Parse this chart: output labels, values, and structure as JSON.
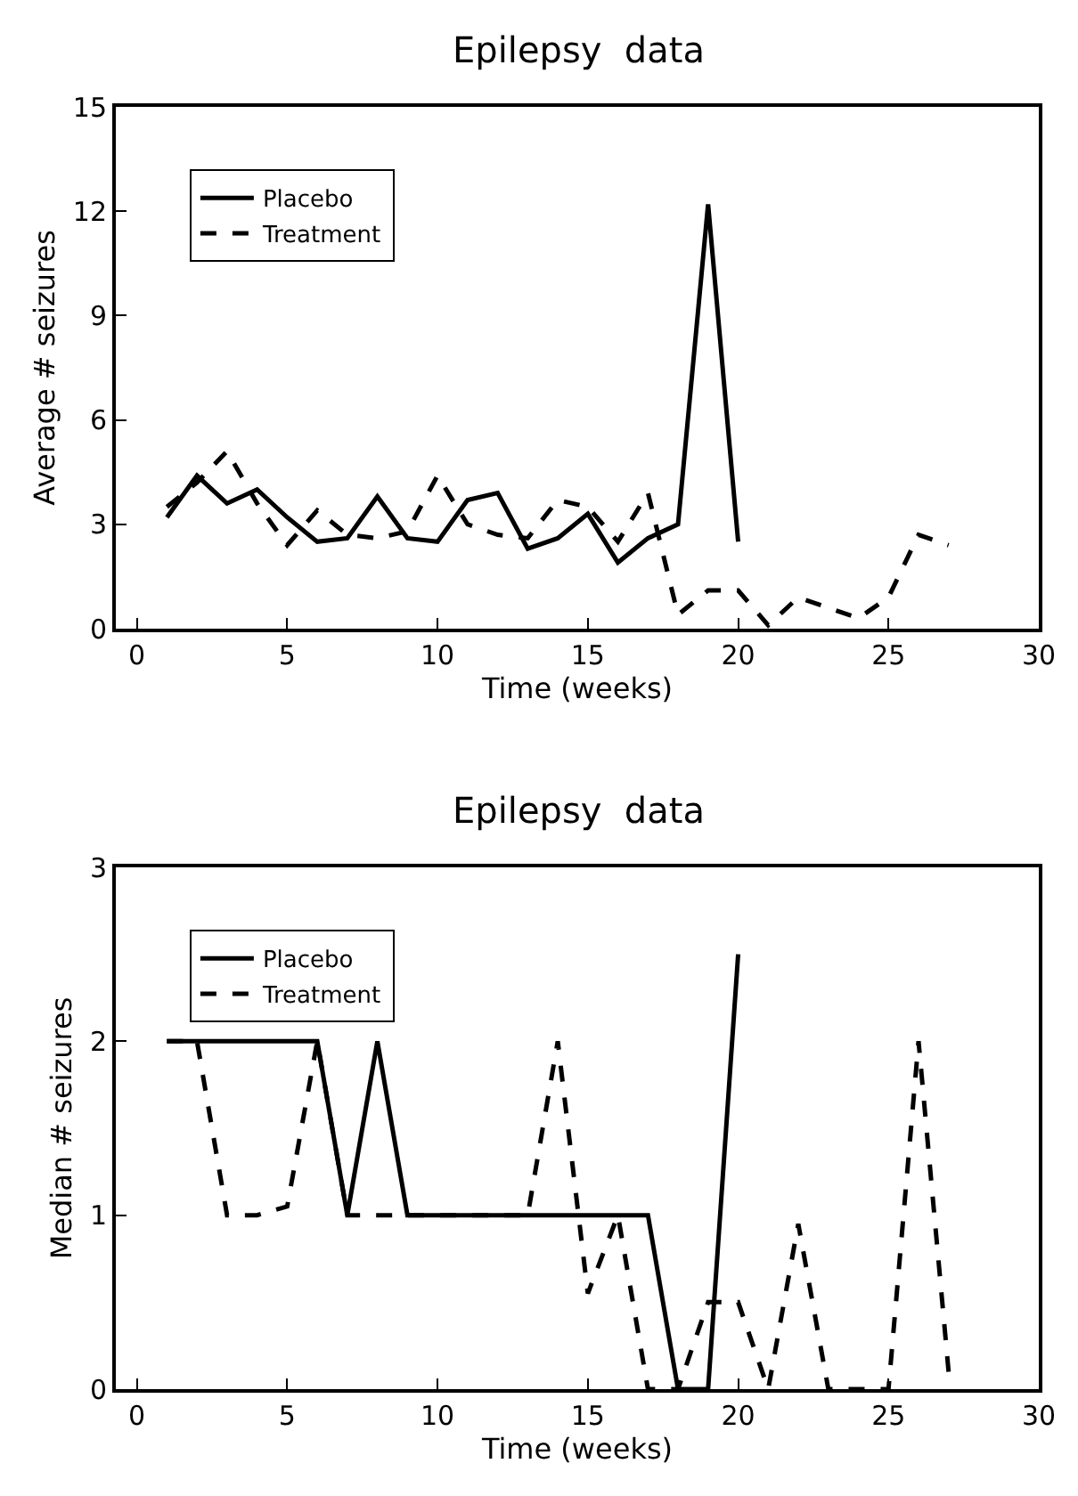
{
  "chart_data": [
    {
      "type": "line",
      "title": "Epilepsy  data",
      "xlabel": "Time (weeks)",
      "ylabel": "Average # seizures",
      "xlim": [
        -0.7,
        30
      ],
      "xticks": [
        0,
        5,
        10,
        15,
        20,
        25,
        30
      ],
      "ylim": [
        0,
        15
      ],
      "yticks": [
        0,
        3,
        6,
        9,
        12,
        15
      ],
      "legend": "top left",
      "marker": "none",
      "series": [
        {
          "name": "Placebo",
          "color": "#000000",
          "line_style": "solid",
          "x": [
            1,
            2,
            3,
            4,
            5,
            6,
            7,
            8,
            9,
            10,
            11,
            12,
            13,
            14,
            15,
            16,
            17,
            18,
            19,
            20
          ],
          "values": [
            3.2,
            4.4,
            3.6,
            4.0,
            3.2,
            2.5,
            2.6,
            3.8,
            2.6,
            2.5,
            3.7,
            3.9,
            2.3,
            2.6,
            3.3,
            1.9,
            2.6,
            3.0,
            12.2,
            2.5
          ]
        },
        {
          "name": "Treatment",
          "color": "#000000",
          "line_style": "dashed",
          "x": [
            1,
            2,
            3,
            4,
            5,
            6,
            7,
            8,
            9,
            10,
            11,
            12,
            13,
            14,
            15,
            16,
            17,
            18,
            19,
            20,
            21,
            22,
            23,
            24,
            25,
            26,
            27
          ],
          "values": [
            3.5,
            4.2,
            5.1,
            3.6,
            2.4,
            3.4,
            2.7,
            2.6,
            2.8,
            4.4,
            3.0,
            2.7,
            2.6,
            3.7,
            3.5,
            2.5,
            3.9,
            0.4,
            1.1,
            1.1,
            0.1,
            0.9,
            0.6,
            0.3,
            0.9,
            2.7,
            2.4
          ]
        }
      ]
    },
    {
      "type": "line",
      "title": "Epilepsy  data",
      "xlabel": "Time (weeks)",
      "ylabel": "Median # seizures",
      "xlim": [
        -0.7,
        30
      ],
      "xticks": [
        0,
        5,
        10,
        15,
        20,
        25,
        30
      ],
      "ylim": [
        0,
        3
      ],
      "yticks": [
        0,
        1,
        2,
        3
      ],
      "legend": "top left",
      "marker": "none",
      "series": [
        {
          "name": "Placebo",
          "color": "#000000",
          "line_style": "solid",
          "x": [
            1,
            2,
            3,
            4,
            5,
            6,
            7,
            8,
            9,
            10,
            11,
            12,
            13,
            14,
            15,
            16,
            17,
            18,
            19,
            20
          ],
          "values": [
            2,
            2,
            2,
            2,
            2,
            2,
            1,
            2,
            1,
            1,
            1,
            1,
            1,
            1,
            1,
            1,
            1,
            0,
            0,
            2.5
          ]
        },
        {
          "name": "Treatment",
          "color": "#000000",
          "line_style": "dashed",
          "x": [
            1,
            2,
            3,
            4,
            5,
            6,
            7,
            8,
            9,
            10,
            11,
            12,
            13,
            14,
            15,
            16,
            17,
            18,
            19,
            20,
            21,
            22,
            23,
            24,
            25,
            26,
            27
          ],
          "values": [
            2,
            2,
            1,
            1,
            1.05,
            2,
            1,
            1,
            1,
            1,
            1,
            1,
            1,
            2,
            0.55,
            1,
            0,
            0,
            0.5,
            0.5,
            0,
            0.95,
            0,
            0,
            0,
            2,
            0.1
          ]
        }
      ]
    }
  ]
}
